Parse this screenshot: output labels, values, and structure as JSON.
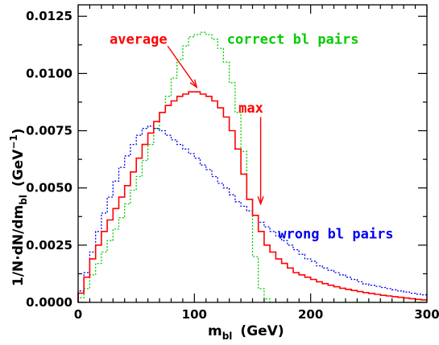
{
  "chart_data": {
    "type": "line",
    "step": true,
    "xlabel": {
      "main": "m",
      "sub": "bl",
      "tail": "(GeV)"
    },
    "ylabel": {
      "p1": "1/N·dN/dm",
      "sub": "bl",
      "p2": "(GeV",
      "sup": "−1",
      "p3": ")"
    },
    "xlim": [
      0,
      300
    ],
    "ylim": [
      0,
      0.013
    ],
    "xticks": [
      0,
      100,
      200,
      300
    ],
    "xtick_labels": [
      "0",
      "100",
      "200",
      "300"
    ],
    "yticks": [
      0,
      0.0025,
      0.005,
      0.0075,
      0.01,
      0.0125
    ],
    "ytick_labels": [
      "0.0000",
      "0.0025",
      "0.0050",
      "0.0075",
      "0.0100",
      "0.0125"
    ],
    "grid": false,
    "bin_width": 5,
    "series": [
      {
        "name": "average",
        "color": "#ff0000",
        "style": "solid",
        "values": [
          0.0004,
          0.0011,
          0.0019,
          0.0025,
          0.0031,
          0.0036,
          0.0041,
          0.0046,
          0.0051,
          0.0057,
          0.0063,
          0.0069,
          0.0074,
          0.0079,
          0.0083,
          0.0086,
          0.0088,
          0.009,
          0.0091,
          0.0092,
          0.0092,
          0.0091,
          0.009,
          0.0088,
          0.0085,
          0.0081,
          0.0075,
          0.0067,
          0.0056,
          0.0045,
          0.0038,
          0.0031,
          0.0025,
          0.0022,
          0.0019,
          0.0017,
          0.0015,
          0.0013,
          0.0012,
          0.0011,
          0.001,
          0.0009,
          0.00082,
          0.00075,
          0.00068,
          0.00062,
          0.00057,
          0.00052,
          0.00047,
          0.00043,
          0.00039,
          0.00035,
          0.00031,
          0.00028,
          0.00025,
          0.00022,
          0.00019,
          0.00016,
          0.00013,
          0.00011
        ]
      },
      {
        "name": "correct bl pairs",
        "color": "#00cc00",
        "style": "dotted",
        "values": [
          0.0002,
          0.0006,
          0.0012,
          0.0017,
          0.0022,
          0.0027,
          0.0032,
          0.0037,
          0.0043,
          0.0049,
          0.0055,
          0.0062,
          0.0069,
          0.0076,
          0.0083,
          0.009,
          0.0098,
          0.0106,
          0.0112,
          0.0116,
          0.0117,
          0.0118,
          0.0117,
          0.0115,
          0.0111,
          0.0105,
          0.0096,
          0.0083,
          0.0066,
          0.0045,
          0.002,
          0.0006,
          0.00015,
          0,
          0,
          0,
          0,
          0,
          0,
          0,
          0,
          0,
          0,
          0,
          0,
          0,
          0,
          0,
          0,
          0,
          0,
          0,
          0,
          0,
          0,
          0,
          0,
          0,
          0,
          0
        ]
      },
      {
        "name": "wrong bl pairs",
        "color": "#0000ee",
        "style": "dotted",
        "values": [
          0.0005,
          0.0013,
          0.0022,
          0.0031,
          0.0039,
          0.0046,
          0.0053,
          0.0059,
          0.0064,
          0.0069,
          0.0073,
          0.0076,
          0.0077,
          0.0076,
          0.0075,
          0.0073,
          0.0071,
          0.0069,
          0.0067,
          0.0065,
          0.0063,
          0.006,
          0.0058,
          0.0055,
          0.0052,
          0.005,
          0.0047,
          0.0044,
          0.0042,
          0.004,
          0.0038,
          0.0035,
          0.0033,
          0.0031,
          0.0029,
          0.0027,
          0.0025,
          0.0023,
          0.0021,
          0.0019,
          0.0018,
          0.0016,
          0.0015,
          0.0014,
          0.0013,
          0.0012,
          0.0011,
          0.001,
          0.0009,
          0.0008,
          0.00075,
          0.0007,
          0.00065,
          0.0006,
          0.00055,
          0.0005,
          0.00045,
          0.0004,
          0.00036,
          0.00033
        ]
      }
    ],
    "annotations": [
      {
        "text": "average",
        "color": "#ff0000",
        "label_at": [
          27,
          0.0113
        ],
        "arrow_from": [
          77,
          0.0112
        ],
        "arrow_to": [
          102,
          0.0094
        ]
      },
      {
        "text": "correct bl pairs",
        "color": "#00cc00",
        "label_at": [
          128,
          0.0113
        ]
      },
      {
        "text": "max",
        "color": "#ff0000",
        "label_at": [
          138,
          0.0083
        ],
        "arrow_from": [
          157,
          0.0081
        ],
        "arrow_to": [
          157,
          0.0043
        ]
      },
      {
        "text": "wrong bl pairs",
        "color": "#0000ee",
        "label_at": [
          172,
          0.0028
        ]
      }
    ]
  }
}
